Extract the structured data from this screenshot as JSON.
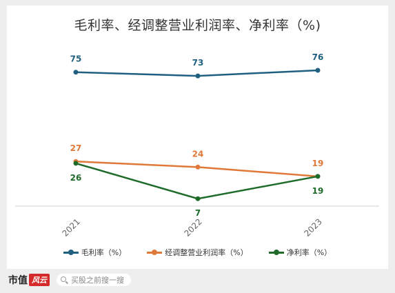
{
  "chart_data": {
    "type": "line",
    "title": "毛利率、经调整营业利润率、净利率（%)",
    "categories": [
      "2021",
      "2022",
      "2023"
    ],
    "series": [
      {
        "name": "毛利率（%）",
        "values": [
          75,
          73,
          76
        ],
        "color": "#1f5f80",
        "label_position": "above"
      },
      {
        "name": "经调整营业利润率（%）",
        "values": [
          27,
          24,
          19
        ],
        "color": "#e07838",
        "label_position": "above"
      },
      {
        "name": "净利率（%）",
        "values": [
          26,
          7,
          19
        ],
        "color": "#1e6b2a",
        "label_position": "below"
      }
    ],
    "xlabel": "",
    "ylabel": "",
    "ylim": [
      0,
      80
    ],
    "grid": false,
    "legend_position": "bottom"
  },
  "footer": {
    "brand": "市值",
    "brand_mark": "风云",
    "search_placeholder": "买股之前搜一搜"
  }
}
